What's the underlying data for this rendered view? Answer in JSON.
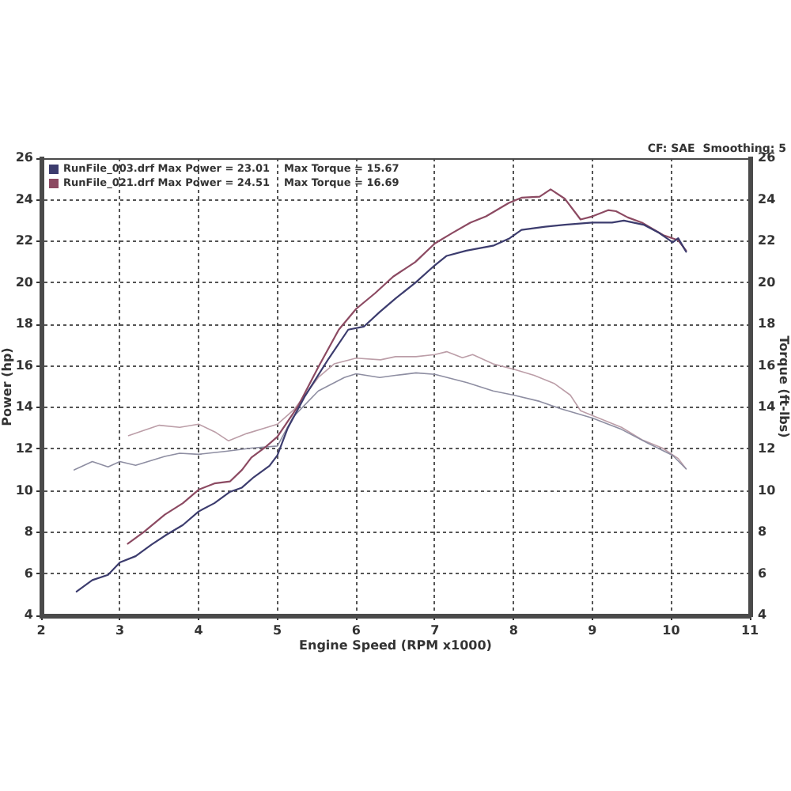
{
  "chart_data": {
    "type": "line",
    "xlabel": "Engine Speed (RPM x1000)",
    "ylabel": "Power (hp)",
    "y2label": "Torque (ft-lbs)",
    "annotations": [
      "CF: SAE  Smoothing: 5"
    ],
    "xlim": [
      2,
      11
    ],
    "xticks": [
      2,
      3,
      4,
      5,
      6,
      7,
      8,
      9,
      10,
      11
    ],
    "ylim": [
      4,
      26
    ],
    "yticks": [
      4,
      6,
      8,
      10,
      12,
      14,
      16,
      18,
      20,
      22,
      24,
      26
    ],
    "y2lim": [
      4,
      26
    ],
    "y2ticks": [
      4,
      6,
      8,
      10,
      12,
      14,
      16,
      18,
      20,
      22,
      24,
      26
    ],
    "grid": true,
    "legend": "top left",
    "marker": "none",
    "line_style": "solid",
    "series": [
      {
        "name": "RunFile_003.drf Max Power = 23.01    Max Torque = 15.67",
        "color": "#3c3c6e",
        "x": [
          2.45,
          2.65,
          2.85,
          3.0,
          3.2,
          3.4,
          3.6,
          3.8,
          4.0,
          4.2,
          4.4,
          4.55,
          4.7,
          4.9,
          5.0,
          5.13,
          5.35,
          5.65,
          5.9,
          6.1,
          6.3,
          6.5,
          6.75,
          7.0,
          7.15,
          7.4,
          7.75,
          7.95,
          8.1,
          8.4,
          8.65,
          9.0,
          9.25,
          9.4,
          9.65,
          9.85,
          10.02,
          10.09,
          10.19
        ],
        "values": [
          5.15,
          5.7,
          5.95,
          6.55,
          6.85,
          7.4,
          7.9,
          8.35,
          9.0,
          9.4,
          9.95,
          10.15,
          10.65,
          11.2,
          11.7,
          13.0,
          14.55,
          16.35,
          17.75,
          17.9,
          18.6,
          19.25,
          20.0,
          20.85,
          21.3,
          21.55,
          21.8,
          22.15,
          22.55,
          22.7,
          22.8,
          22.9,
          22.9,
          23.0,
          22.8,
          22.4,
          21.95,
          22.15,
          21.5
        ]
      },
      {
        "name": "RunFile_021.drf Max Power = 24.51    Max Torque = 16.69",
        "color": "#8c4a62",
        "x": [
          3.1,
          3.3,
          3.57,
          3.8,
          4.0,
          4.2,
          4.4,
          4.55,
          4.67,
          4.85,
          5.0,
          5.26,
          5.52,
          5.78,
          6.0,
          6.24,
          6.47,
          6.75,
          7.0,
          7.22,
          7.45,
          7.65,
          7.94,
          8.1,
          8.33,
          8.47,
          8.65,
          8.85,
          9.0,
          9.2,
          9.3,
          9.45,
          9.63,
          9.9,
          10.09,
          10.19
        ],
        "values": [
          7.45,
          8.0,
          8.85,
          9.4,
          10.05,
          10.35,
          10.45,
          11.0,
          11.6,
          12.1,
          12.6,
          14.05,
          15.95,
          17.75,
          18.75,
          19.5,
          20.3,
          21.0,
          21.9,
          22.4,
          22.9,
          23.2,
          23.85,
          24.1,
          24.15,
          24.5,
          24.05,
          23.05,
          23.2,
          23.5,
          23.45,
          23.15,
          22.9,
          22.3,
          22.05,
          21.55
        ]
      },
      {
        "color": "#8e8ea2",
        "axis": "y2",
        "x": [
          2.42,
          2.65,
          2.85,
          3.0,
          3.2,
          3.57,
          3.76,
          4.0,
          4.35,
          4.67,
          5.0,
          5.2,
          5.52,
          5.85,
          6.0,
          6.3,
          6.5,
          6.76,
          7.0,
          7.41,
          7.74,
          8.0,
          8.33,
          8.59,
          9.0,
          9.37,
          9.7,
          10.02,
          10.19
        ],
        "values": [
          11.0,
          11.4,
          11.15,
          11.4,
          11.22,
          11.65,
          11.8,
          11.75,
          11.9,
          12.05,
          12.15,
          13.55,
          14.8,
          15.45,
          15.63,
          15.45,
          15.55,
          15.67,
          15.6,
          15.2,
          14.8,
          14.6,
          14.3,
          13.95,
          13.5,
          12.95,
          12.3,
          11.7,
          11.05
        ]
      },
      {
        "color": "#bc9ea8",
        "axis": "y2",
        "x": [
          3.11,
          3.3,
          3.5,
          3.76,
          4.0,
          4.22,
          4.38,
          4.61,
          4.87,
          5.0,
          5.21,
          5.52,
          5.72,
          6.0,
          6.31,
          6.5,
          6.76,
          7.0,
          7.15,
          7.35,
          7.48,
          7.74,
          8.0,
          8.26,
          8.52,
          8.72,
          8.85,
          9.11,
          9.37,
          9.63,
          9.89,
          10.09,
          10.19
        ],
        "values": [
          12.65,
          12.9,
          13.15,
          13.05,
          13.2,
          12.8,
          12.4,
          12.75,
          13.05,
          13.2,
          13.9,
          15.45,
          16.1,
          16.38,
          16.3,
          16.45,
          16.45,
          16.55,
          16.69,
          16.4,
          16.55,
          16.1,
          15.85,
          15.55,
          15.15,
          14.6,
          13.85,
          13.45,
          13.05,
          12.45,
          12.05,
          11.55,
          11.05
        ]
      }
    ]
  }
}
